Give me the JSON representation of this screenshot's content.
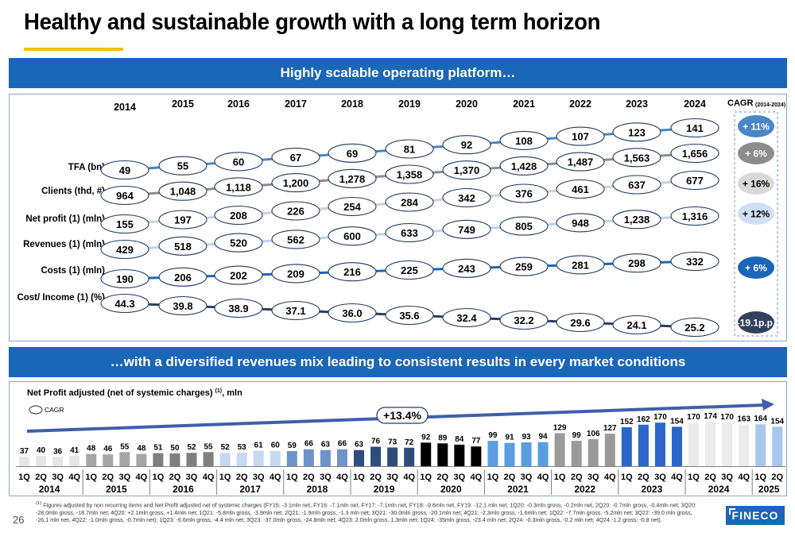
{
  "title": "Healthy and sustainable growth with a long term horizon",
  "banner_top": "Highly scalable operating platform…",
  "banner_bottom": "…with a diversified revenues mix leading to consistent results in every market conditions",
  "page_number": "26",
  "logo_text": "FINECO",
  "footnote_marker": "(1)",
  "footnote": "Figures adjusted by non recurring items and Net Profit adjusted net of systemic charges (FY15: -3.1mln net, FY16: -7.1mln net, FY17: -7.1mln net, FY18: -9.6mln net, FY19: -12.1 mln net, 1Q20: -0.3mln gross, -0.2mln net, 2Q20: -0.7mln gross, -0.4mln net; 3Q20: -28.0mln gross, -18.7mln net; 4Q20: +2.1mln gross, +1.4mln net; 1Q21: -5.8mln gross, -3.9mln net; 2Q21: -1.9mln gross, -1.3 mln net; 3Q21: -30.0mln gross, -20.1mln net; 4Q21: -2.3mln gross, -1.6mln net; 1Q22: -7.7mln gross, -5.2mln net; 3Q22: -39.0 mln gross, -26.1 mln net, 4Q22: -1.0mln gross, -0.7mln net); 1Q23: -6.6mln gross, -4.4 mln net; 3Q23: -37.0mln gross, -24.8mln net; 4Q23: 2.0mln gross, 1.3mln net; 1Q24: -35mln gross, -23.4 mln net; 2Q24: -0.3mln gross, -0.2 mln net; 4Q24 -1.2 gross; -0.8 net).",
  "chart_data": [
    {
      "type": "line",
      "years": [
        "2014",
        "2015",
        "2016",
        "2017",
        "2018",
        "2019",
        "2020",
        "2021",
        "2022",
        "2023",
        "2024"
      ],
      "cagr_header": "CAGR",
      "cagr_header_sub": "(2014-2024)",
      "series": [
        {
          "name": "TFA (bn)",
          "values": [
            "49",
            "55",
            "60",
            "67",
            "69",
            "81",
            "92",
            "108",
            "107",
            "123",
            "141"
          ],
          "cagr": "+ 11%",
          "color": "#4a86c8",
          "cagr_bg": "#4a86c8",
          "cagr_fg": "#ffffff"
        },
        {
          "name": "Clients (thd, #)",
          "values": [
            "964",
            "1,048",
            "1,118",
            "1,200",
            "1,278",
            "1,358",
            "1,370",
            "1,428",
            "1,487",
            "1,563",
            "1,656"
          ],
          "cagr": "+ 6%",
          "color": "#8c8c8c",
          "cagr_bg": "#8c8c8c",
          "cagr_fg": "#ffffff"
        },
        {
          "name": "Net profit (1) (mln)",
          "values": [
            "155",
            "197",
            "208",
            "226",
            "254",
            "284",
            "342",
            "376",
            "461",
            "637",
            "677"
          ],
          "cagr": "+ 16%",
          "color": "#d0d0d0",
          "cagr_bg": "#d9d9d9",
          "cagr_fg": "#000000"
        },
        {
          "name": "Revenues (1) (mln)",
          "values": [
            "429",
            "518",
            "520",
            "562",
            "600",
            "633",
            "749",
            "805",
            "948",
            "1,238",
            "1,316"
          ],
          "cagr": "+ 12%",
          "color": "#bcd3ee",
          "cagr_bg": "#cfe0f4",
          "cagr_fg": "#000000"
        },
        {
          "name": "Costs (1) (mln)",
          "values": [
            "190",
            "206",
            "202",
            "209",
            "216",
            "225",
            "243",
            "259",
            "281",
            "298",
            "332"
          ],
          "cagr": "+ 6%",
          "color": "#1a66b7",
          "cagr_bg": "#1a66b7",
          "cagr_fg": "#ffffff"
        },
        {
          "name": "Cost/ Income (1) (%)",
          "values": [
            "44.3",
            "39.8",
            "38.9",
            "37.1",
            "36.0",
            "35.6",
            "32.4",
            "32.2",
            "29.6",
            "24.1",
            "25.2"
          ],
          "cagr": "-19.1p.p.",
          "color": "#2f3f60",
          "cagr_bg": "#33415e",
          "cagr_fg": "#ffffff"
        }
      ]
    },
    {
      "type": "bar",
      "title": "Net Profit adjusted (net of systemic charges)",
      "title_sup": "(1)",
      "title_unit": ", mln",
      "legend_label": "CAGR",
      "cagr_value": "+13.4%",
      "quarter_labels": [
        "1Q",
        "2Q",
        "3Q",
        "4Q"
      ],
      "years": [
        {
          "year": "2014",
          "color": "#e6e6e6",
          "values": [
            37,
            40,
            36,
            41
          ]
        },
        {
          "year": "2015",
          "color": "#a6a6a6",
          "values": [
            48,
            46,
            55,
            48
          ]
        },
        {
          "year": "2016",
          "color": "#7f7f7f",
          "values": [
            51,
            50,
            52,
            55
          ]
        },
        {
          "year": "2017",
          "color": "#c6d9f0",
          "values": [
            52,
            53,
            61,
            60
          ]
        },
        {
          "year": "2018",
          "color": "#6e93c8",
          "values": [
            59,
            66,
            63,
            66
          ]
        },
        {
          "year": "2019",
          "color": "#2e4d7a",
          "values": [
            63,
            76,
            73,
            72
          ]
        },
        {
          "year": "2020",
          "color": "#000000",
          "values": [
            92,
            89,
            84,
            77
          ]
        },
        {
          "year": "2021",
          "color": "#5a9ee0",
          "values": [
            99,
            91,
            93,
            94
          ]
        },
        {
          "year": "2022",
          "color": "#9a9a9a",
          "values": [
            129,
            99,
            106,
            127
          ]
        },
        {
          "year": "2023",
          "color": "#2b65c6",
          "values": [
            152,
            162,
            170,
            154
          ]
        },
        {
          "year": "2024",
          "color": "#ebebeb",
          "values": [
            170,
            174,
            170,
            163
          ]
        },
        {
          "year": "2025",
          "color": "#a9c7ea",
          "values": [
            164,
            154
          ]
        }
      ],
      "ylim": [
        0,
        180
      ]
    }
  ]
}
